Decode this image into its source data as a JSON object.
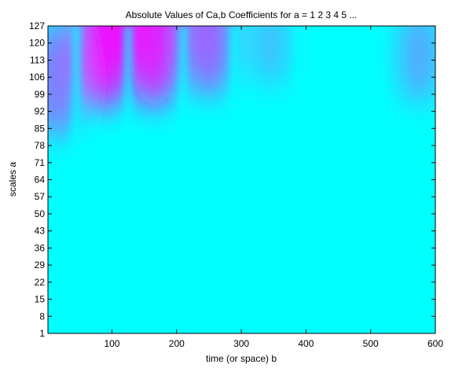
{
  "chart_data": {
    "type": "heatmap",
    "title": "Absolute Values of Ca,b Coefficients for a =  1 2 3 4 5 ...",
    "xlabel": "time (or space) b",
    "ylabel": "scales a",
    "xlim": [
      1,
      600
    ],
    "ylim": [
      1,
      127
    ],
    "x_ticks": [
      100,
      200,
      300,
      400,
      500,
      600
    ],
    "y_ticks": [
      1,
      8,
      15,
      22,
      29,
      36,
      43,
      50,
      57,
      64,
      71,
      78,
      85,
      92,
      99,
      106,
      113,
      120,
      127
    ],
    "grid": false,
    "legend": "none",
    "colormap": {
      "name": "cool",
      "low": "#00ffff",
      "high": "#ff00ff"
    },
    "ridges": [
      {
        "b": 45,
        "a_from": 1,
        "a_to": 127
      },
      {
        "b": 125,
        "a_from": 30,
        "a_to": 127
      },
      {
        "b": 210,
        "a_from": 20,
        "a_to": 127
      },
      {
        "b": 290,
        "a_from": 40,
        "a_to": 127
      },
      {
        "b": 390,
        "a_from": 50,
        "a_to": 127
      },
      {
        "b": 510,
        "a_from": 40,
        "a_to": 127
      }
    ],
    "intensity_peaks": [
      {
        "b": 88,
        "a": 124,
        "value": 1.0
      },
      {
        "b": 165,
        "a": 124,
        "value": 0.95
      },
      {
        "b": 250,
        "a": 124,
        "value": 0.7
      },
      {
        "b": 15,
        "a": 105,
        "value": 0.6
      },
      {
        "b": 345,
        "a": 120,
        "value": 0.3
      },
      {
        "b": 575,
        "a": 115,
        "value": 0.4
      }
    ]
  }
}
